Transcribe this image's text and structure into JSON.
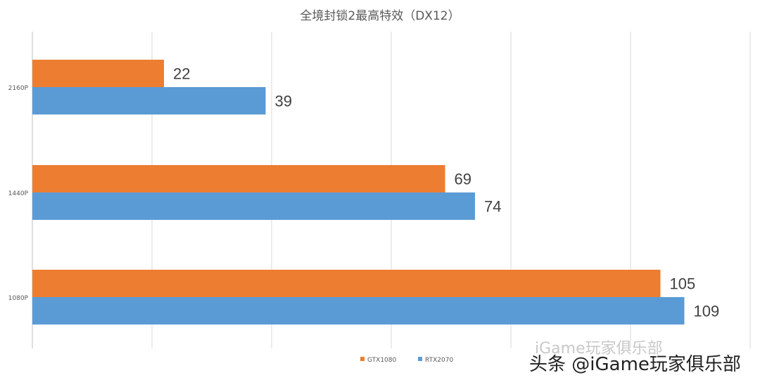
{
  "chart_data": {
    "type": "bar",
    "orientation": "horizontal",
    "title": "全境封锁2最高特效（DX12）",
    "categories": [
      "2160P",
      "1440P",
      "1080P"
    ],
    "series": [
      {
        "name": "GTX1080",
        "color": "#ed7d31",
        "values": [
          22,
          69,
          105
        ]
      },
      {
        "name": "RTX2070",
        "color": "#5b9bd5",
        "values": [
          39,
          74,
          109
        ]
      }
    ],
    "xlim": [
      0,
      120
    ],
    "grid": true,
    "legend": "bottom"
  },
  "watermark": {
    "faint": "iGame玩家俱乐部",
    "main": "头条 @iGame玩家俱乐部"
  }
}
